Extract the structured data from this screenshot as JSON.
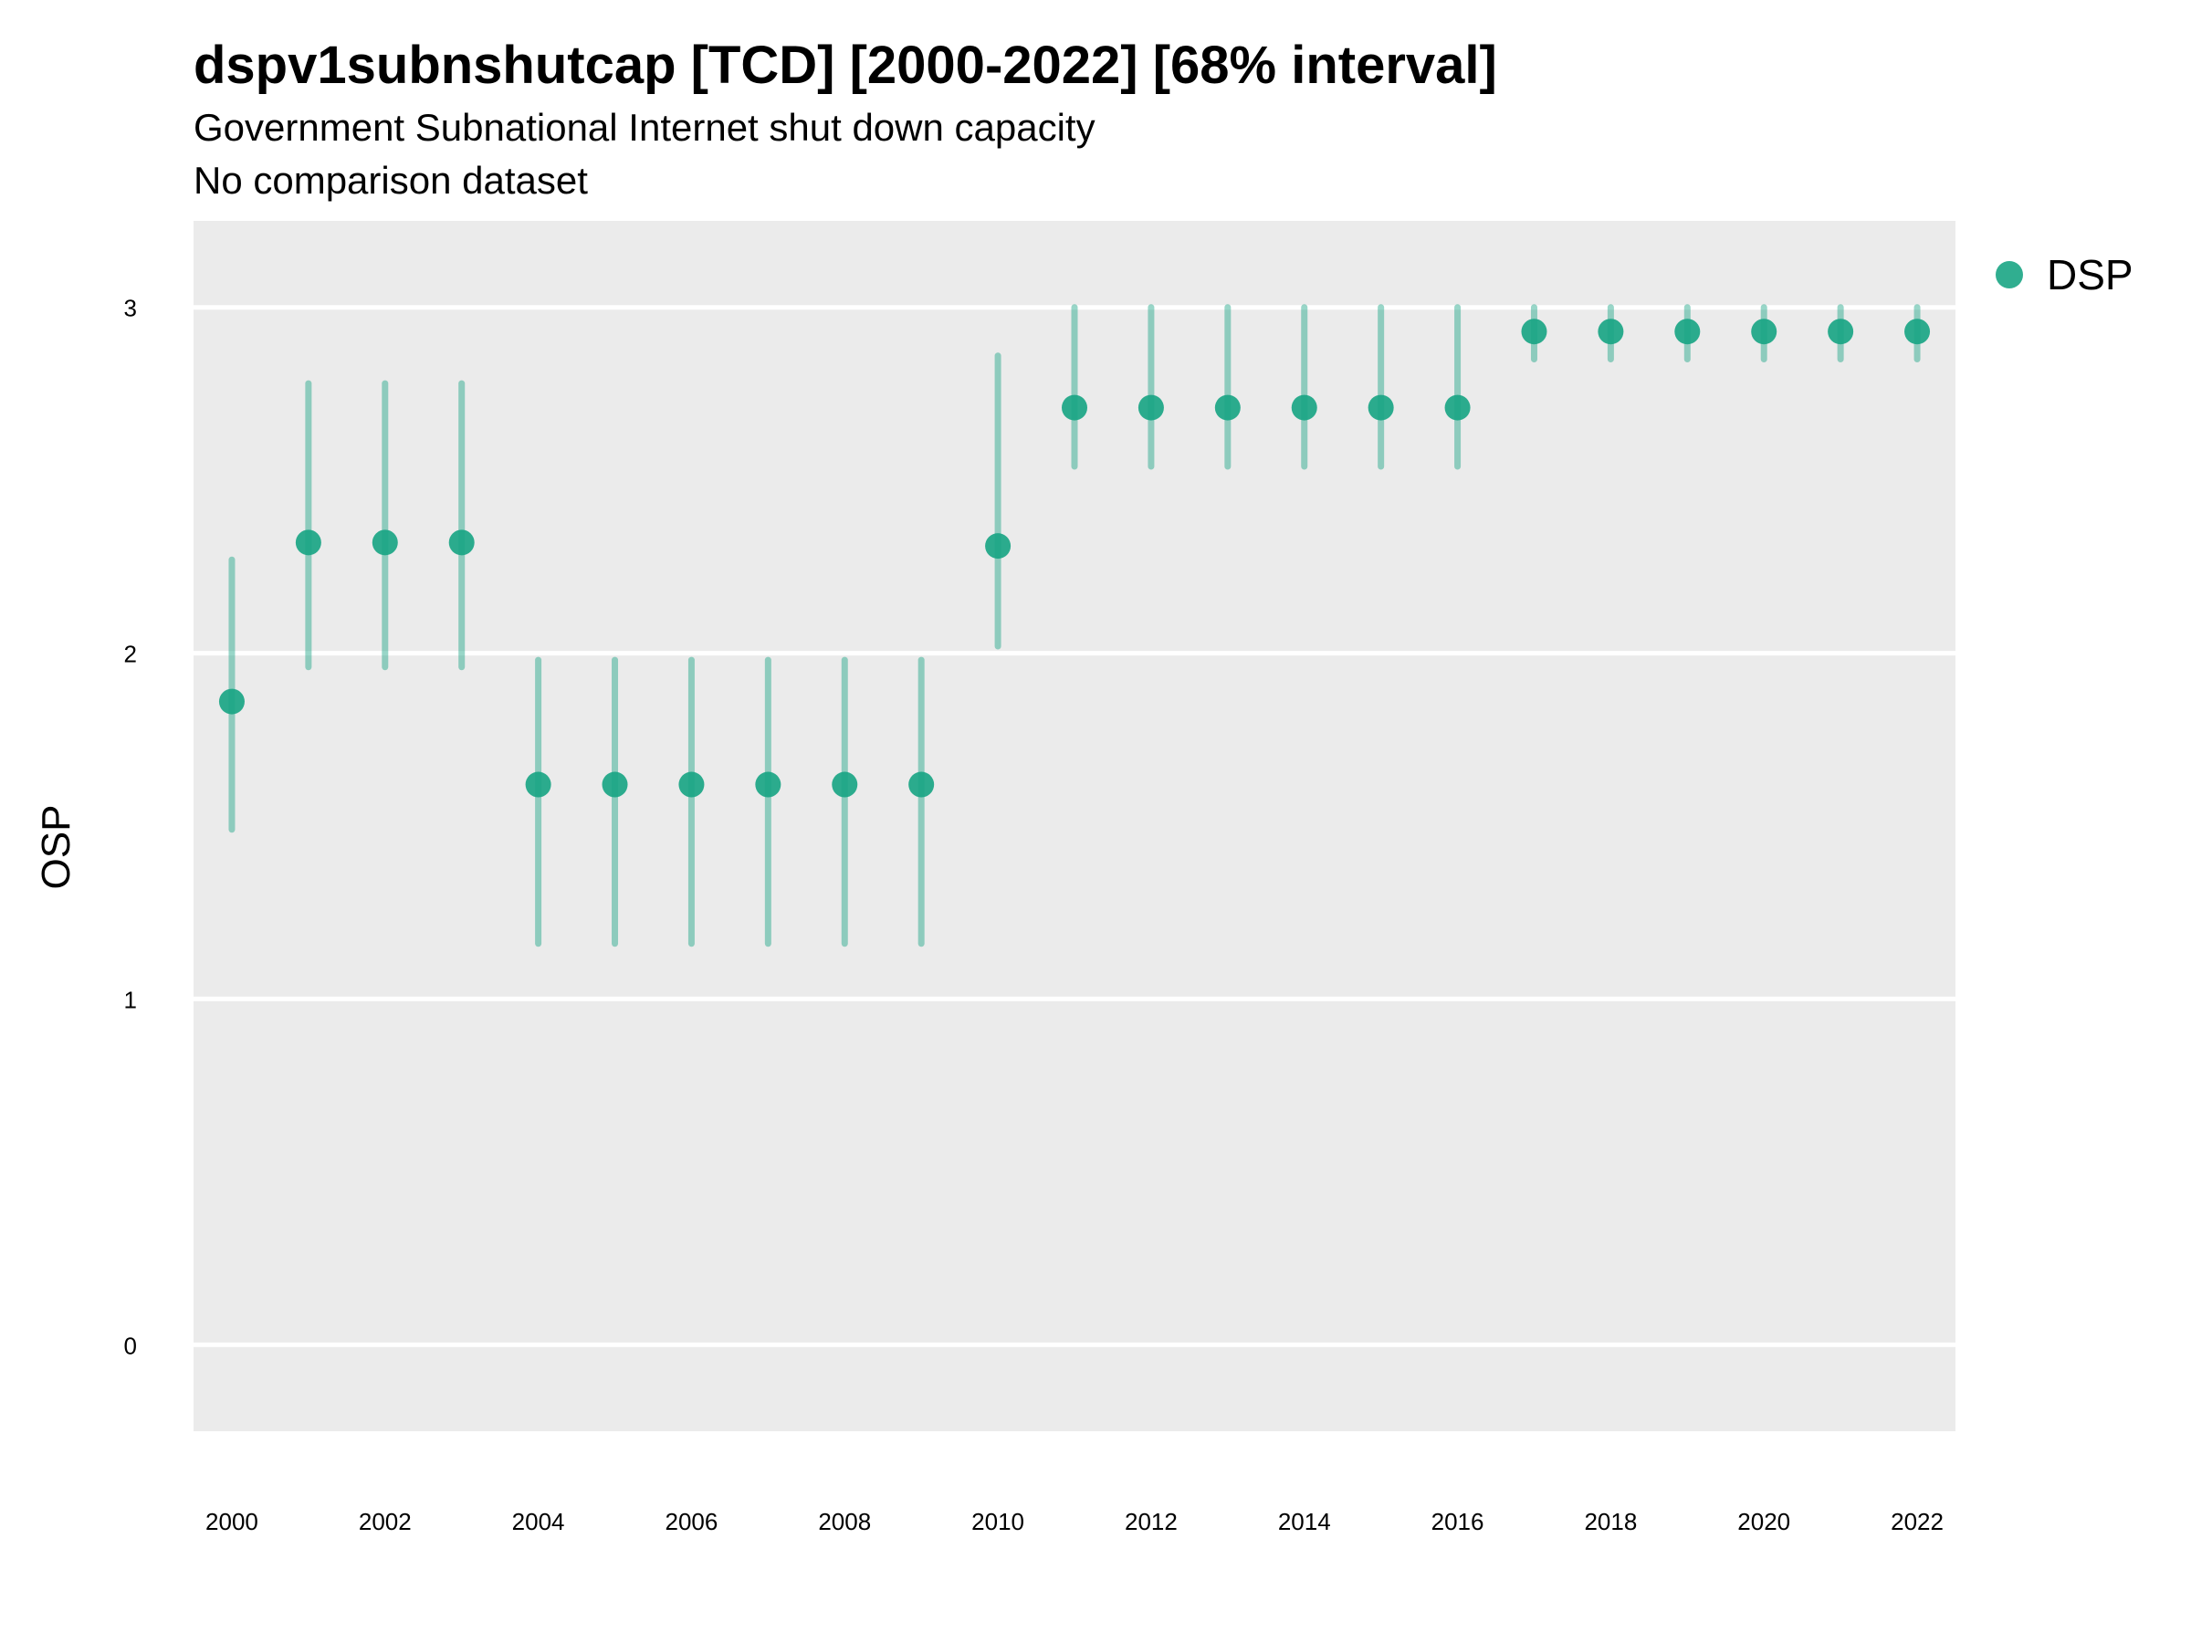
{
  "chart_data": {
    "type": "scatter",
    "title": "dspv1subnshutcap [TCD] [2000-2022] [68% interval]",
    "subtitle": "Government Subnational Internet shut down capacity",
    "subtitle2": "No comparison dataset",
    "xlabel": "",
    "ylabel": "OSP",
    "ylim": [
      -0.25,
      3.25
    ],
    "xlim": [
      1999.5,
      2022.5
    ],
    "yticks": [
      "0",
      "1",
      "2",
      "3"
    ],
    "xticks": [
      "2000",
      "2002",
      "2004",
      "2006",
      "2008",
      "2010",
      "2012",
      "2014",
      "2016",
      "2018",
      "2020",
      "2022"
    ],
    "grid": true,
    "legend_position": "right",
    "color": "#1aa584",
    "series": [
      {
        "name": "DSP",
        "x": [
          2000,
          2001,
          2002,
          2003,
          2004,
          2005,
          2006,
          2007,
          2008,
          2009,
          2010,
          2011,
          2012,
          2013,
          2014,
          2015,
          2016,
          2017,
          2018,
          2019,
          2020,
          2021,
          2022
        ],
        "y": [
          1.86,
          2.32,
          2.32,
          2.32,
          1.62,
          1.62,
          1.62,
          1.62,
          1.62,
          1.62,
          2.31,
          2.71,
          2.71,
          2.71,
          2.71,
          2.71,
          2.71,
          2.93,
          2.93,
          2.93,
          2.93,
          2.93,
          2.93
        ],
        "lower": [
          1.49,
          1.96,
          1.96,
          1.96,
          1.16,
          1.16,
          1.16,
          1.16,
          1.16,
          1.16,
          2.02,
          2.54,
          2.54,
          2.54,
          2.54,
          2.54,
          2.54,
          2.85,
          2.85,
          2.85,
          2.85,
          2.85,
          2.85
        ],
        "upper": [
          2.27,
          2.78,
          2.78,
          2.78,
          1.98,
          1.98,
          1.98,
          1.98,
          1.98,
          1.98,
          2.86,
          3.0,
          3.0,
          3.0,
          3.0,
          3.0,
          3.0,
          3.0,
          3.0,
          3.0,
          3.0,
          3.0,
          3.0
        ]
      }
    ]
  }
}
